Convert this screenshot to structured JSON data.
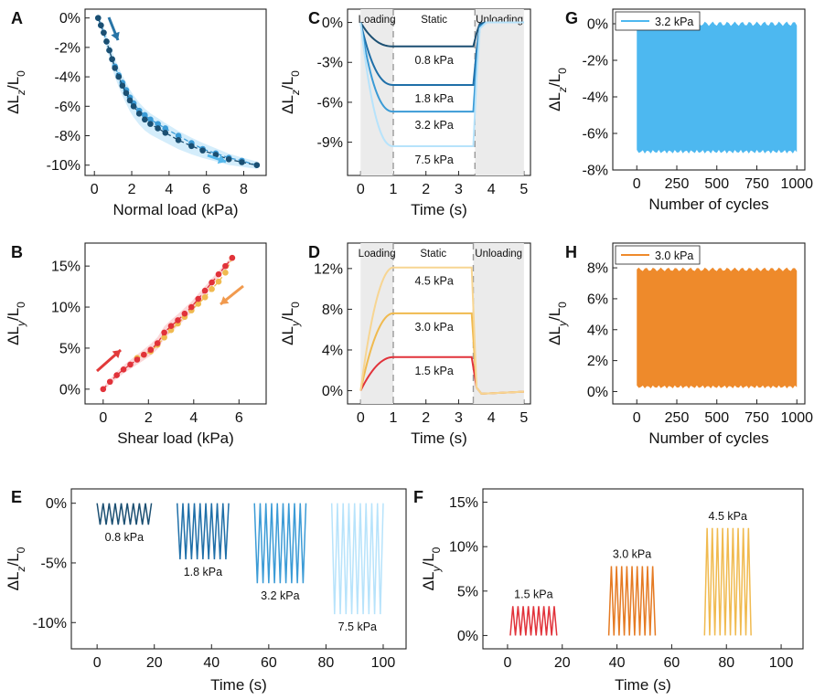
{
  "colors": {
    "z1": "#1b4f72",
    "z2": "#1f6fa8",
    "z3": "#3b9bd6",
    "z4": "#a9d8f5",
    "zlight": "#b7e3fb",
    "zband": "#9fd8f6",
    "zarrow": "#2874a6",
    "zarrow2": "#55b8ec",
    "y1": "#e1323a",
    "y2": "#e57a22",
    "y3": "#f0ba4f",
    "y4": "#f7d592",
    "ylight": "#f6a8aa",
    "yarrow": "#e23a3a",
    "yarrow2": "#f19a4e",
    "gfill": "#4db8f0",
    "hfill": "#ee8a2b",
    "shade": "#ebebeb",
    "dash": "#9a9a9a"
  },
  "chart_data": [
    {
      "panel": "A",
      "type": "scatter",
      "xlabel": "Normal load (kPa)",
      "ylabel_main": "ΔL",
      "ylabel_sub": "z",
      "ylabel_tail": "/L",
      "ylabel_sub2": "0",
      "xlim": [
        -0.5,
        9.2
      ],
      "ylim": [
        -10.7,
        0.6
      ],
      "xticks": [
        0,
        2,
        4,
        6,
        8
      ],
      "xtick_labels": [
        "0",
        "2",
        "4",
        "6",
        "8"
      ],
      "yticks": [
        0,
        -2,
        -4,
        -6,
        -8,
        -10
      ],
      "ytick_labels": [
        "0%",
        "-2%",
        "-4%",
        "-6%",
        "-8%",
        "-10%"
      ],
      "series": [
        {
          "name": "loading",
          "x": [
            0.2,
            0.35,
            0.5,
            0.65,
            0.8,
            0.95,
            1.1,
            1.3,
            1.5,
            1.7,
            1.9,
            2.1,
            2.4,
            2.7,
            3.0,
            3.4,
            3.8,
            4.5,
            5.2,
            5.8,
            6.5,
            7.2,
            7.9,
            8.7
          ],
          "y": [
            0,
            -0.5,
            -1.0,
            -1.6,
            -2.2,
            -2.8,
            -3.4,
            -4.0,
            -4.6,
            -5.1,
            -5.6,
            -6.0,
            -6.5,
            -6.9,
            -7.2,
            -7.5,
            -7.8,
            -8.3,
            -8.7,
            -9.0,
            -9.3,
            -9.6,
            -9.8,
            -10.0
          ]
        },
        {
          "name": "unloading",
          "x": [
            8.7,
            7.9,
            7.2,
            6.5,
            5.8,
            5.2,
            4.5,
            3.8,
            3.4,
            3.0,
            2.7,
            2.4,
            2.1,
            1.9,
            1.7,
            1.5,
            1.3,
            1.1,
            0.95,
            0.8,
            0.65,
            0.5,
            0.35,
            0.2
          ],
          "y": [
            -10.0,
            -9.7,
            -9.5,
            -9.2,
            -8.9,
            -8.5,
            -8.0,
            -7.5,
            -7.2,
            -6.9,
            -6.6,
            -6.3,
            -5.8,
            -5.4,
            -4.9,
            -4.4,
            -3.9,
            -3.3,
            -2.8,
            -2.2,
            -1.6,
            -1.0,
            -0.5,
            0
          ]
        }
      ]
    },
    {
      "panel": "B",
      "type": "scatter",
      "xlabel": "Shear load (kPa)",
      "ylabel_main": "ΔL",
      "ylabel_sub": "y",
      "ylabel_tail": "/L",
      "ylabel_sub2": "0",
      "xlim": [
        -0.8,
        7.2
      ],
      "ylim": [
        -1.8,
        17.8
      ],
      "xticks": [
        0,
        2,
        4,
        6
      ],
      "xtick_labels": [
        "0",
        "2",
        "4",
        "6"
      ],
      "yticks": [
        0,
        5,
        10,
        15
      ],
      "ytick_labels": [
        "0%",
        "5%",
        "10%",
        "15%"
      ],
      "series": [
        {
          "name": "loading",
          "x": [
            0,
            0.3,
            0.6,
            0.9,
            1.2,
            1.5,
            1.8,
            2.1,
            2.4,
            2.7,
            3.0,
            3.3,
            3.6,
            3.9,
            4.2,
            4.5,
            4.8,
            5.1,
            5.4,
            5.7
          ],
          "y": [
            0,
            0.9,
            1.7,
            2.4,
            3.0,
            3.6,
            4.2,
            4.8,
            5.6,
            6.9,
            7.7,
            8.4,
            9.2,
            10.0,
            11.0,
            12.0,
            13.0,
            14.0,
            15.0,
            16.0
          ]
        },
        {
          "name": "unloading",
          "x": [
            5.7,
            5.4,
            5.1,
            4.8,
            4.5,
            4.2,
            3.9,
            3.6,
            3.3,
            3.0,
            2.7,
            2.4,
            2.1,
            1.8,
            1.5
          ],
          "y": [
            16.0,
            14.2,
            13.1,
            12.2,
            11.2,
            10.4,
            9.6,
            8.8,
            8.0,
            7.2,
            6.3,
            5.4,
            4.6,
            4.2,
            3.8
          ]
        }
      ]
    },
    {
      "panel": "C",
      "type": "line",
      "xlabel": "Time (s)",
      "ylabel_main": "ΔL",
      "ylabel_sub": "z",
      "ylabel_tail": "/L",
      "ylabel_sub2": "0",
      "xlim": [
        -0.4,
        5.2
      ],
      "ylim": [
        -11.5,
        1.0
      ],
      "xticks": [
        0,
        1,
        2,
        3,
        4,
        5
      ],
      "xtick_labels": [
        "0",
        "1",
        "2",
        "3",
        "4",
        "5"
      ],
      "yticks": [
        0,
        -3,
        -6,
        -9
      ],
      "ytick_labels": [
        "0%",
        "-3%",
        "-6%",
        "-9%"
      ],
      "phases": [
        "Loading",
        "Static",
        "Unloading"
      ],
      "series": [
        {
          "name": "0.8 kPa",
          "level": -1.8
        },
        {
          "name": "1.8 kPa",
          "level": -4.7
        },
        {
          "name": "3.2 kPa",
          "level": -6.7
        },
        {
          "name": "7.5 kPa",
          "level": -9.3
        }
      ]
    },
    {
      "panel": "D",
      "type": "line",
      "xlabel": "Time (s)",
      "ylabel_main": "ΔL",
      "ylabel_sub": "y",
      "ylabel_tail": "/L",
      "ylabel_sub2": "0",
      "xlim": [
        -0.4,
        5.2
      ],
      "ylim": [
        -1.3,
        14.5
      ],
      "xticks": [
        0,
        1,
        2,
        3,
        4,
        5
      ],
      "xtick_labels": [
        "0",
        "1",
        "2",
        "3",
        "4",
        "5"
      ],
      "yticks": [
        0,
        4,
        8,
        12
      ],
      "ytick_labels": [
        "0%",
        "4%",
        "8%",
        "12%"
      ],
      "phases": [
        "Loading",
        "Static",
        "Unloading"
      ],
      "series": [
        {
          "name": "1.5 kPa",
          "level": 3.3
        },
        {
          "name": "3.0 kPa",
          "level": 7.6
        },
        {
          "name": "4.5 kPa",
          "level": 12.1
        }
      ]
    },
    {
      "panel": "G",
      "type": "area",
      "xlabel": "Number of cycles",
      "ylabel_main": "ΔL",
      "ylabel_sub": "z",
      "ylabel_tail": "/L",
      "ylabel_sub2": "0",
      "xlim": [
        -150,
        1050
      ],
      "ylim": [
        -8,
        0.8
      ],
      "xticks": [
        0,
        250,
        500,
        750,
        1000
      ],
      "xtick_labels": [
        "0",
        "250",
        "500",
        "750",
        "1000"
      ],
      "yticks": [
        0,
        -2,
        -4,
        -6,
        -8
      ],
      "ytick_labels": [
        "0%",
        "-2%",
        "-4%",
        "-6%",
        "-8%"
      ],
      "legend": "3.2 kPa",
      "band": [
        0.0,
        -7.0
      ]
    },
    {
      "panel": "H",
      "type": "area",
      "xlabel": "Number of cycles",
      "ylabel_main": "ΔL",
      "ylabel_sub": "y",
      "ylabel_tail": "/L",
      "ylabel_sub2": "0",
      "xlim": [
        -150,
        1050
      ],
      "ylim": [
        -0.8,
        9.6
      ],
      "xticks": [
        0,
        250,
        500,
        750,
        1000
      ],
      "xtick_labels": [
        "0",
        "250",
        "500",
        "750",
        "1000"
      ],
      "yticks": [
        0,
        2,
        4,
        6,
        8
      ],
      "ytick_labels": [
        "0%",
        "2%",
        "4%",
        "6%",
        "8%"
      ],
      "legend": "3.0 kPa",
      "band": [
        7.9,
        0.3
      ]
    },
    {
      "panel": "E",
      "type": "line",
      "xlabel": "Time (s)",
      "ylabel_main": "ΔL",
      "ylabel_sub": "z",
      "ylabel_tail": "/L",
      "ylabel_sub2": "0",
      "xlim": [
        -9,
        108
      ],
      "ylim": [
        -12.2,
        1.2
      ],
      "xticks": [
        0,
        20,
        40,
        60,
        80,
        100
      ],
      "xtick_labels": [
        "0",
        "20",
        "40",
        "60",
        "80",
        "100"
      ],
      "yticks": [
        0,
        -5,
        -10
      ],
      "ytick_labels": [
        "0%",
        "-5%",
        "-10%"
      ],
      "series": [
        {
          "name": "0.8 kPa",
          "start": 0,
          "end": 19,
          "amp": -1.8
        },
        {
          "name": "1.8 kPa",
          "start": 28,
          "end": 46,
          "amp": -4.7
        },
        {
          "name": "3.2 kPa",
          "start": 55,
          "end": 73,
          "amp": -6.7
        },
        {
          "name": "7.5 kPa",
          "start": 82,
          "end": 100,
          "amp": -9.3
        }
      ]
    },
    {
      "panel": "F",
      "type": "line",
      "xlabel": "Time (s)",
      "ylabel_main": "ΔL",
      "ylabel_sub": "y",
      "ylabel_tail": "/L",
      "ylabel_sub2": "0",
      "xlim": [
        -9,
        108
      ],
      "ylim": [
        -1.5,
        16.5
      ],
      "xticks": [
        0,
        20,
        40,
        60,
        80,
        100
      ],
      "xtick_labels": [
        "0",
        "20",
        "40",
        "60",
        "80",
        "100"
      ],
      "yticks": [
        0,
        5,
        10,
        15
      ],
      "ytick_labels": [
        "0%",
        "5%",
        "10%",
        "15%"
      ],
      "series": [
        {
          "name": "1.5 kPa",
          "start": 1,
          "end": 18,
          "amp": 3.3
        },
        {
          "name": "3.0 kPa",
          "start": 37,
          "end": 54,
          "amp": 7.8
        },
        {
          "name": "4.5 kPa",
          "start": 72,
          "end": 89,
          "amp": 12.1
        }
      ]
    }
  ]
}
